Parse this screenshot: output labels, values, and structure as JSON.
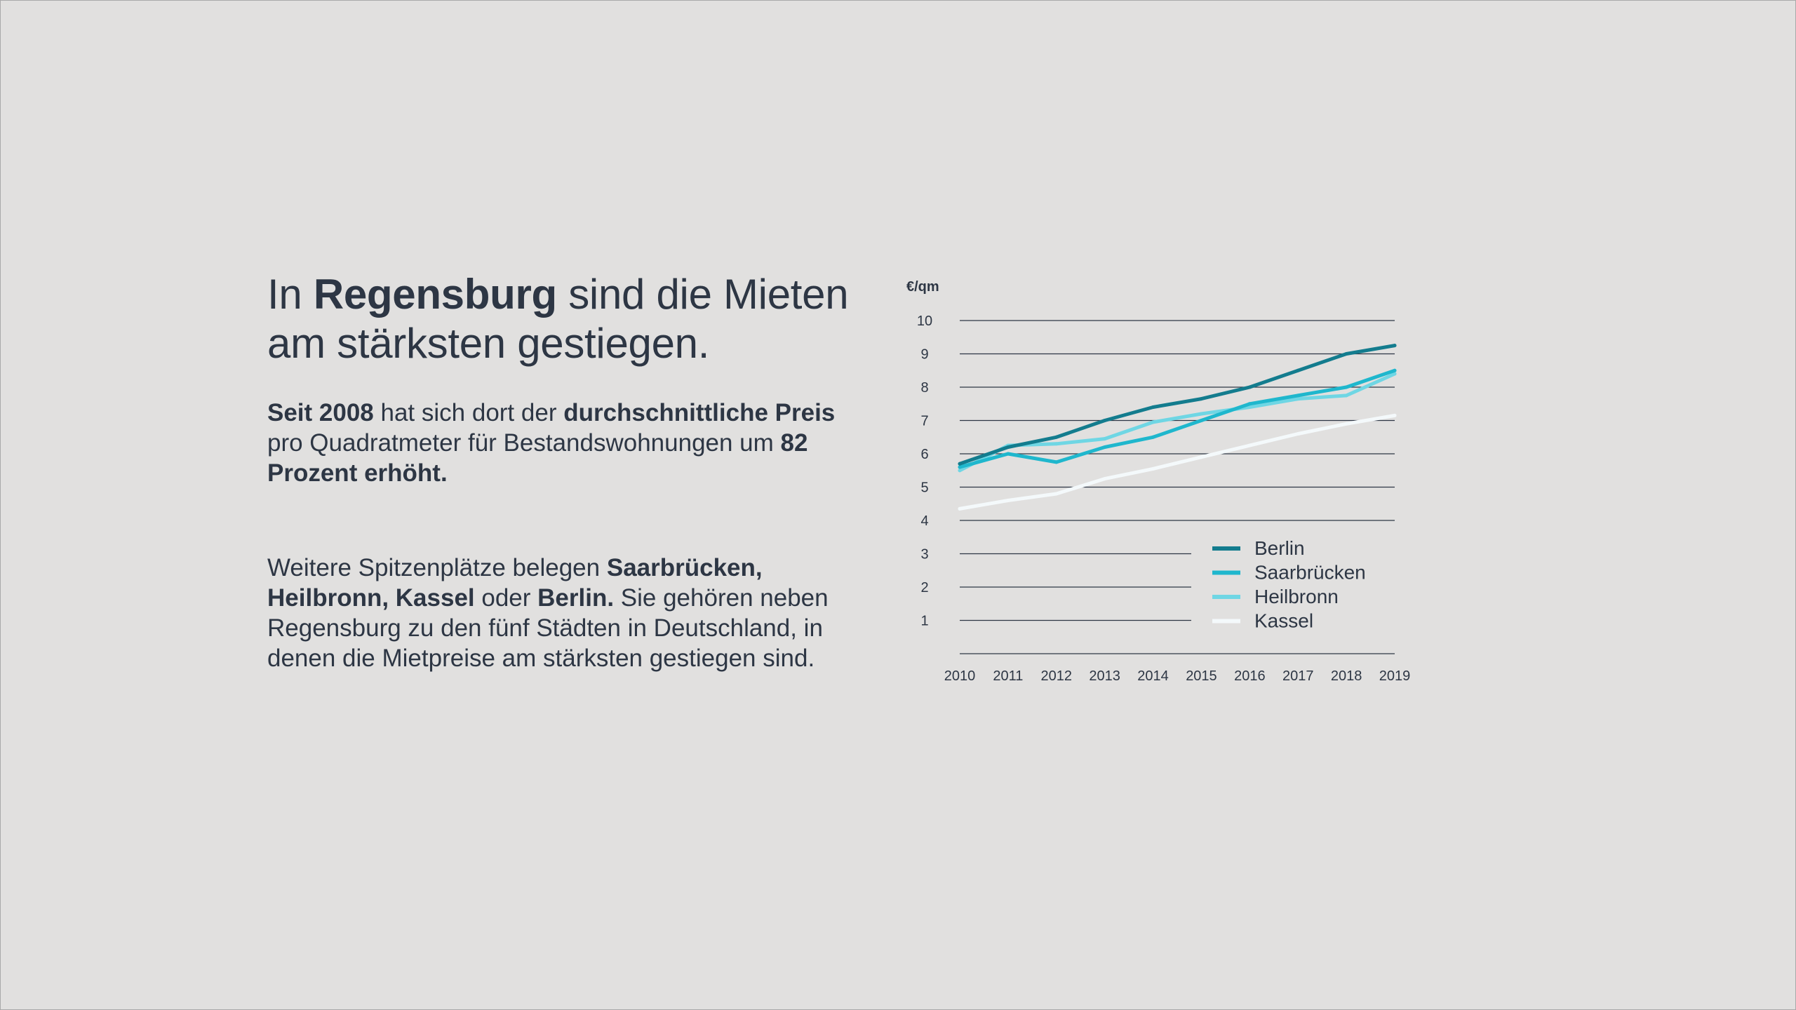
{
  "headline": {
    "prefix": "In ",
    "bold": "Regensburg",
    "suffix": " sind die Mieten am stärksten gestiegen."
  },
  "paragraph1": [
    {
      "text": "Seit 2008",
      "bold": true
    },
    {
      "text": " hat sich dort der ",
      "bold": false
    },
    {
      "text": "durchschnittliche Preis",
      "bold": true
    },
    {
      "text": " pro Quadratmeter für Bestandswohnungen um ",
      "bold": false
    },
    {
      "text": "82 Prozent erhöht.",
      "bold": true
    }
  ],
  "paragraph2": [
    {
      "text": "Weitere Spitzenplätze belegen ",
      "bold": false
    },
    {
      "text": "Saarbrücken, Heilbronn, Kassel",
      "bold": true
    },
    {
      "text": " oder ",
      "bold": false
    },
    {
      "text": "Berlin.",
      "bold": true
    },
    {
      "text": " Sie gehören neben Regensburg zu den fünf Städten in Deutschland, in denen die Mietpreise am stärksten gestiegen sind.",
      "bold": false
    }
  ],
  "colors": {
    "background": "#e1e0df",
    "text": "#2d3644",
    "gridline": "#2d3644",
    "berlin": "#137c8e",
    "saarbruecken": "#1fb7cd",
    "heilbronn": "#6fd6e4",
    "kassel": "#f4f9fb"
  },
  "chart_data": {
    "type": "line",
    "ylabel": "€/qm",
    "x": [
      "2010",
      "2011",
      "2012",
      "2013",
      "2014",
      "2015",
      "2016",
      "2017",
      "2018",
      "2019"
    ],
    "yticks": [
      "1",
      "2",
      "3",
      "4",
      "5",
      "6",
      "7",
      "8",
      "9",
      "10"
    ],
    "ylim": [
      0,
      10
    ],
    "grid": true,
    "legend_position": "bottom-right",
    "series": [
      {
        "name": "Berlin",
        "color": "#137c8e",
        "values": [
          5.7,
          6.2,
          6.5,
          7.0,
          7.4,
          7.65,
          8.0,
          8.5,
          9.0,
          9.25
        ]
      },
      {
        "name": "Saarbrücken",
        "color": "#1fb7cd",
        "values": [
          5.6,
          6.0,
          5.75,
          6.2,
          6.5,
          7.0,
          7.5,
          7.75,
          8.0,
          8.5
        ]
      },
      {
        "name": "Heilbronn",
        "color": "#6fd6e4",
        "values": [
          5.5,
          6.25,
          6.3,
          6.45,
          6.95,
          7.2,
          7.4,
          7.65,
          7.75,
          8.4
        ]
      },
      {
        "name": "Kassel",
        "color": "#f4f9fb",
        "values": [
          4.35,
          4.6,
          4.8,
          5.25,
          5.55,
          5.9,
          6.25,
          6.6,
          6.9,
          7.15
        ]
      }
    ]
  }
}
